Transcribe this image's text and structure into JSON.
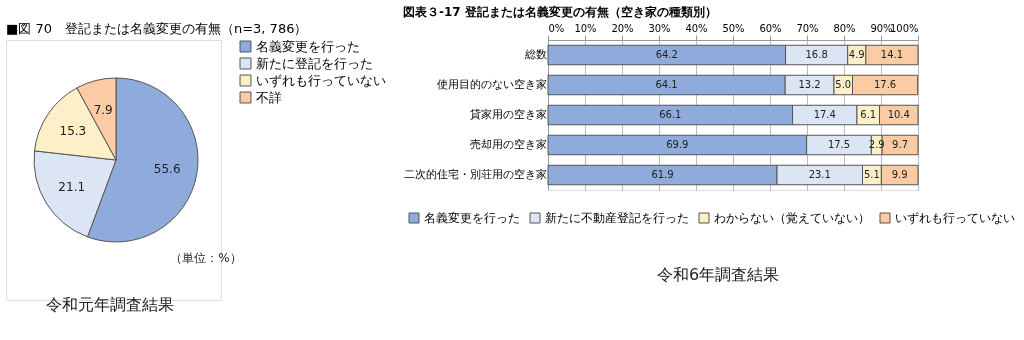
{
  "chart_data": [
    {
      "type": "pie",
      "title": "■図 70　登記または名義変更の有無（n=3, 786）",
      "categories": [
        "名義変更を行った",
        "新たに登記を行った",
        "いずれも行っていない",
        "不詳"
      ],
      "values": [
        55.6,
        21.1,
        15.3,
        7.9
      ],
      "colors": [
        "#8fabdc",
        "#dce5f3",
        "#fdf0c8",
        "#fbcba3"
      ],
      "data_labels": true,
      "legend": "right",
      "annotations": [
        "（単位：%）",
        "令和元年調査結果"
      ]
    },
    {
      "type": "bar",
      "orientation": "horizontal",
      "stacked": true,
      "title": "図表３-17 登記または名義変更の有無（空き家の種類別）",
      "categories": [
        "総数",
        "使用目的のない空き家",
        "貸家用の空き家",
        "売却用の空き家",
        "二次的住宅・別荘用の空き家"
      ],
      "series": [
        {
          "name": "名義変更を行った",
          "color": "#8fabdc",
          "values": [
            64.2,
            64.1,
            66.1,
            69.9,
            61.9
          ]
        },
        {
          "name": "新たに不動産登記を行った",
          "color": "#dce5f3",
          "values": [
            16.8,
            13.2,
            17.4,
            17.5,
            23.1
          ]
        },
        {
          "name": "わからない（覚えていない）",
          "color": "#fdf0c8",
          "values": [
            4.9,
            5.0,
            6.1,
            2.9,
            5.1
          ],
          "value_labels": [
            "4.9",
            "5.0",
            "6.1",
            "2.9",
            "5.1"
          ]
        },
        {
          "name": "いずれも行っていない",
          "color": "#fbcba3",
          "values": [
            14.1,
            17.6,
            10.4,
            9.7,
            9.9
          ]
        }
      ],
      "xlim": [
        0,
        100
      ],
      "xticks": [
        {
          "value": 0,
          "label": "0%"
        },
        {
          "value": 10,
          "label": "10%"
        },
        {
          "value": 20,
          "label": "20%"
        },
        {
          "value": 30,
          "label": "30%"
        },
        {
          "value": 40,
          "label": "40%"
        },
        {
          "value": 50,
          "label": "50%"
        },
        {
          "value": 60,
          "label": "60%"
        },
        {
          "value": 70,
          "label": "70%"
        },
        {
          "value": 80,
          "label": "80%"
        },
        {
          "value": 90,
          "label": "90%"
        },
        {
          "value": 100,
          "label": "100%"
        }
      ],
      "grid": "x",
      "data_labels": true,
      "legend": "bottom",
      "annotations": [
        "令和6年調査結果"
      ]
    }
  ]
}
